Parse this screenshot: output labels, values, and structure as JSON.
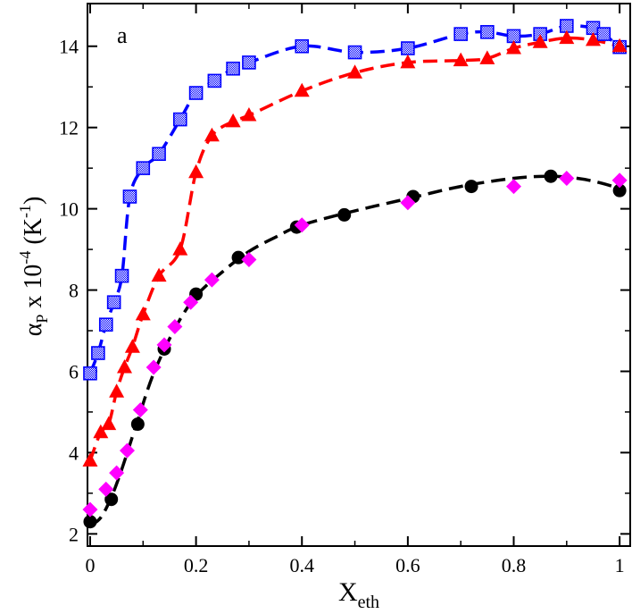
{
  "chart_data": {
    "type": "scatter",
    "panel_label": "a",
    "xlabel": {
      "main": "X",
      "sub": "eth"
    },
    "ylabel": {
      "symbol": "α",
      "sub": "P",
      "mid": " x 10",
      "exp": "-4",
      "unit_open": "  (K",
      "unit_exp": "-1",
      "unit_close": ")"
    },
    "xlim": [
      -0.005,
      1.02
    ],
    "ylim": [
      1.7,
      15.05
    ],
    "xticks": [
      0,
      0.2,
      0.4,
      0.6,
      0.8,
      1
    ],
    "xtick_labels": [
      "0",
      "0.2",
      "0.4",
      "0.6",
      "0.8",
      "1"
    ],
    "yticks": [
      2,
      4,
      6,
      8,
      10,
      12,
      14
    ],
    "ytick_labels": [
      "2",
      "4",
      "6",
      "8",
      "10",
      "12",
      "14"
    ],
    "series": [
      {
        "name": "blue-squares",
        "marker": "square",
        "color": "#0000ff",
        "line": "dashed",
        "x": [
          0,
          0.015,
          0.03,
          0.045,
          0.06,
          0.075,
          0.1,
          0.13,
          0.17,
          0.2,
          0.235,
          0.27,
          0.3,
          0.4,
          0.5,
          0.6,
          0.7,
          0.75,
          0.8,
          0.85,
          0.9,
          0.95,
          0.97,
          1.0
        ],
        "y": [
          5.95,
          6.45,
          7.15,
          7.7,
          8.35,
          10.3,
          11.0,
          11.35,
          12.2,
          12.85,
          13.15,
          13.45,
          13.6,
          14.0,
          13.85,
          13.95,
          14.3,
          14.35,
          14.25,
          14.3,
          14.5,
          14.45,
          14.3,
          13.98
        ],
        "fit_x": [
          0,
          0.015,
          0.03,
          0.045,
          0.06,
          0.075,
          0.1,
          0.13,
          0.17,
          0.2,
          0.235,
          0.27,
          0.3,
          0.4,
          0.5,
          0.6,
          0.7,
          0.75,
          0.8,
          0.85,
          0.9,
          0.95,
          0.97,
          1.0
        ],
        "fit_y": [
          5.95,
          6.45,
          7.15,
          7.7,
          8.35,
          10.3,
          11.0,
          11.35,
          12.2,
          12.85,
          13.15,
          13.45,
          13.6,
          14.0,
          13.85,
          13.95,
          14.3,
          14.35,
          14.25,
          14.3,
          14.5,
          14.45,
          14.3,
          13.98
        ]
      },
      {
        "name": "red-triangles",
        "marker": "triangle",
        "color": "#ff0000",
        "line": "dashed",
        "x": [
          0,
          0.02,
          0.035,
          0.05,
          0.065,
          0.08,
          0.1,
          0.13,
          0.17,
          0.2,
          0.23,
          0.27,
          0.3,
          0.4,
          0.5,
          0.6,
          0.7,
          0.75,
          0.8,
          0.85,
          0.9,
          0.95,
          1.0
        ],
        "y": [
          3.8,
          4.5,
          4.7,
          5.5,
          6.1,
          6.6,
          7.4,
          8.35,
          9.0,
          10.9,
          11.8,
          12.15,
          12.3,
          12.9,
          13.35,
          13.6,
          13.65,
          13.7,
          13.95,
          14.1,
          14.2,
          14.15,
          14.0
        ],
        "fit_x": [
          0,
          0.02,
          0.035,
          0.05,
          0.065,
          0.08,
          0.1,
          0.13,
          0.17,
          0.2,
          0.23,
          0.27,
          0.3,
          0.4,
          0.5,
          0.6,
          0.7,
          0.75,
          0.8,
          0.85,
          0.9,
          0.95,
          1.0
        ],
        "fit_y": [
          3.8,
          4.5,
          4.7,
          5.5,
          6.1,
          6.6,
          7.4,
          8.35,
          9.0,
          10.9,
          11.8,
          12.15,
          12.3,
          12.9,
          13.35,
          13.6,
          13.65,
          13.7,
          13.95,
          14.1,
          14.2,
          14.15,
          14.0
        ]
      },
      {
        "name": "black-circles",
        "marker": "circle",
        "color": "#000000",
        "line": "dashed",
        "x": [
          0,
          0.04,
          0.09,
          0.14,
          0.2,
          0.28,
          0.39,
          0.48,
          0.61,
          0.72,
          0.87,
          1.0
        ],
        "y": [
          2.3,
          2.85,
          4.7,
          6.55,
          7.9,
          8.8,
          9.55,
          9.85,
          10.3,
          10.55,
          10.8,
          10.45
        ],
        "fit_x": [
          0,
          0.02,
          0.04,
          0.06,
          0.09,
          0.12,
          0.16,
          0.2,
          0.25,
          0.3,
          0.35,
          0.4,
          0.5,
          0.6,
          0.7,
          0.8,
          0.87,
          0.92,
          0.96,
          1.0
        ],
        "fit_y": [
          2.2,
          2.4,
          2.9,
          3.6,
          4.8,
          5.95,
          7.05,
          7.85,
          8.45,
          8.95,
          9.3,
          9.6,
          9.95,
          10.25,
          10.55,
          10.75,
          10.8,
          10.75,
          10.65,
          10.5
        ]
      },
      {
        "name": "magenta-diamonds",
        "marker": "diamond",
        "color": "#ff00ff",
        "line": "none",
        "x": [
          0,
          0.03,
          0.05,
          0.07,
          0.095,
          0.12,
          0.14,
          0.16,
          0.19,
          0.23,
          0.3,
          0.4,
          0.6,
          0.8,
          0.9,
          1.0
        ],
        "y": [
          2.6,
          3.1,
          3.5,
          4.05,
          5.05,
          6.1,
          6.65,
          7.1,
          7.7,
          8.25,
          8.75,
          9.6,
          10.15,
          10.55,
          10.75,
          10.7
        ],
        "fit_x": [],
        "fit_y": []
      }
    ]
  }
}
